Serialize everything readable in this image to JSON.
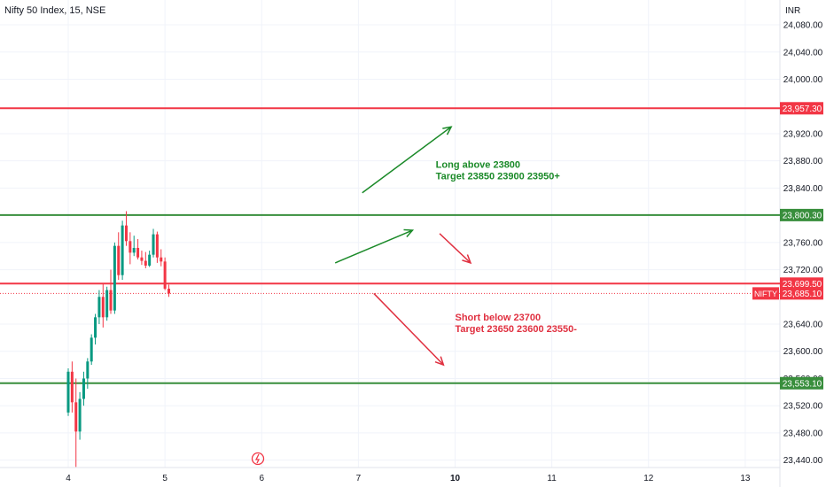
{
  "header": {
    "symbol_title": "Nifty 50 Index, 15, NSE",
    "currency": "INR"
  },
  "chart_data": {
    "type": "candlestick",
    "ylim": [
      23420,
      24110
    ],
    "y_ticks": [
      {
        "value": 24080,
        "label": "24,080.00"
      },
      {
        "value": 24040,
        "label": "24,040.00"
      },
      {
        "value": 24000,
        "label": "24,000.00"
      },
      {
        "value": 23920,
        "label": "23,920.00"
      },
      {
        "value": 23880,
        "label": "23,880.00"
      },
      {
        "value": 23840,
        "label": "23,840.00"
      },
      {
        "value": 23760,
        "label": "23,760.00"
      },
      {
        "value": 23720,
        "label": "23,720.00"
      },
      {
        "value": 23640,
        "label": "23,640.00"
      },
      {
        "value": 23600,
        "label": "23,600.00"
      },
      {
        "value": 23560,
        "label": "23,560.00"
      },
      {
        "value": 23520,
        "label": "23,520.00"
      },
      {
        "value": 23480,
        "label": "23,480.00"
      },
      {
        "value": 23440,
        "label": "23,440.00"
      }
    ],
    "x_ticks": [
      {
        "label": "4",
        "index": 0,
        "bold": false
      },
      {
        "label": "5",
        "index": 25,
        "bold": false
      },
      {
        "label": "6",
        "index": 50,
        "bold": false
      },
      {
        "label": "7",
        "index": 75,
        "bold": false
      },
      {
        "label": "10",
        "index": 100,
        "bold": true
      },
      {
        "label": "11",
        "index": 125,
        "bold": false
      },
      {
        "label": "12",
        "index": 150,
        "bold": false
      },
      {
        "label": "13",
        "index": 175,
        "bold": false
      }
    ],
    "colors": {
      "up": "#089981",
      "down": "#f23645",
      "green_line": "#388e3c",
      "red_line": "#f23645",
      "label_green": "#1b8a29",
      "label_red": "#e03040"
    },
    "hlines": [
      {
        "value": 23957.3,
        "label": "23,957.30",
        "color": "#f23645"
      },
      {
        "value": 23800.3,
        "label": "23,800.30",
        "color": "#388e3c"
      },
      {
        "value": 23699.5,
        "label": "23,699.50",
        "color": "#f23645"
      },
      {
        "value": 23553.1,
        "label": "23,553.10",
        "color": "#388e3c"
      }
    ],
    "last_price": {
      "value": 23685.1,
      "label": "23,685.10",
      "tag": "NIFTY"
    },
    "candles": [
      [
        23510,
        23575,
        23505,
        23570
      ],
      [
        23570,
        23585,
        23510,
        23525
      ],
      [
        23525,
        23560,
        23430,
        23482
      ],
      [
        23482,
        23540,
        23470,
        23530
      ],
      [
        23530,
        23570,
        23520,
        23560
      ],
      [
        23560,
        23590,
        23545,
        23585
      ],
      [
        23585,
        23625,
        23580,
        23620
      ],
      [
        23620,
        23655,
        23610,
        23650
      ],
      [
        23650,
        23690,
        23640,
        23680
      ],
      [
        23680,
        23700,
        23635,
        23650
      ],
      [
        23650,
        23695,
        23645,
        23690
      ],
      [
        23690,
        23720,
        23655,
        23660
      ],
      [
        23660,
        23760,
        23655,
        23755
      ],
      [
        23755,
        23775,
        23705,
        23712
      ],
      [
        23712,
        23792,
        23705,
        23785
      ],
      [
        23785,
        23806,
        23755,
        23762
      ],
      [
        23762,
        23775,
        23728,
        23745
      ],
      [
        23745,
        23770,
        23740,
        23752
      ],
      [
        23752,
        23765,
        23735,
        23738
      ],
      [
        23738,
        23748,
        23727,
        23733
      ],
      [
        23733,
        23746,
        23722,
        23726
      ],
      [
        23726,
        23748,
        23724,
        23742
      ],
      [
        23742,
        23780,
        23738,
        23772
      ],
      [
        23772,
        23776,
        23730,
        23738
      ],
      [
        23738,
        23750,
        23725,
        23732
      ],
      [
        23732,
        23738,
        23690,
        23692
      ],
      [
        23692,
        23698,
        23680,
        23685
      ]
    ],
    "arrows": [
      {
        "from": [
          76,
          23833
        ],
        "to": [
          99,
          23930
        ],
        "color": "#1b8a29"
      },
      {
        "from": [
          69,
          23730
        ],
        "to": [
          89,
          23778
        ],
        "color": "#1b8a29"
      },
      {
        "from": [
          96,
          23773
        ],
        "to": [
          104,
          23730
        ],
        "color": "#e03040"
      },
      {
        "from": [
          79,
          23685
        ],
        "to": [
          97,
          23580
        ],
        "color": "#e03040"
      }
    ],
    "annotations": [
      {
        "lines": [
          "Long above 23800",
          "Target 23850 23900 23950+"
        ],
        "x": 95,
        "y": 23870,
        "color": "#1b8a29"
      },
      {
        "lines": [
          "Short below 23700",
          "Target 23650 23600 23550-"
        ],
        "x": 100,
        "y": 23645,
        "color": "#e03040"
      }
    ]
  }
}
